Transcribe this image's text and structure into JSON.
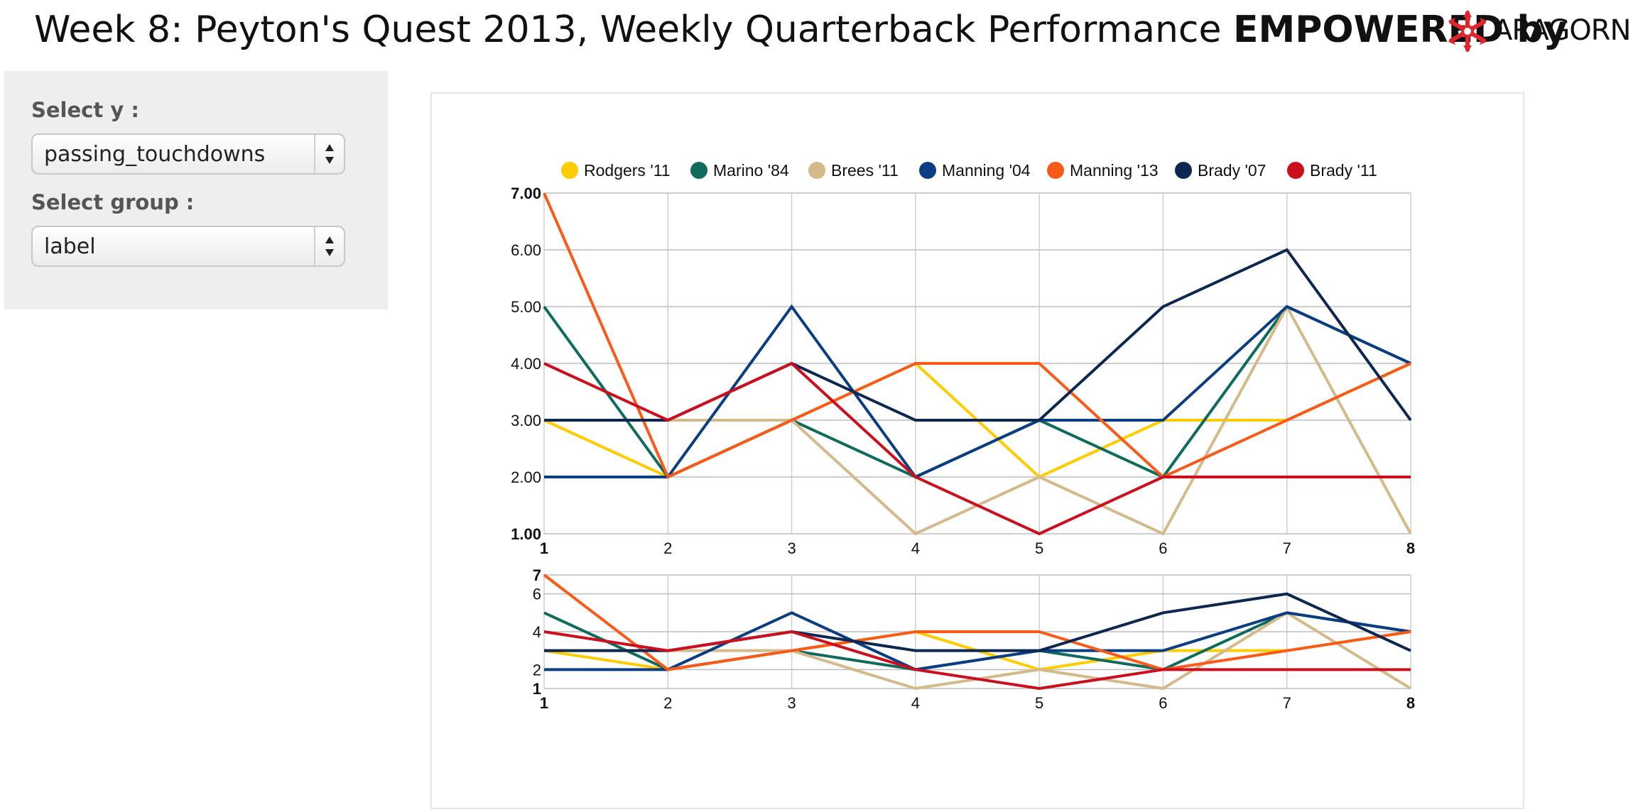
{
  "header": {
    "title_plain": "Week 8: Peyton's Quest 2013, Weekly Quarterback Performance ",
    "title_bold": "EMPOWERED by",
    "logo_text": "ARAGORN"
  },
  "controls": {
    "y_label": "Select y :",
    "y_value": "passing_touchdowns",
    "group_label": "Select group :",
    "group_value": "label"
  },
  "colors": {
    "sidebar_bg": "#eeeeee",
    "logo_red": "#e0262c"
  },
  "chart_data": {
    "type": "line",
    "title": "",
    "xlabel": "",
    "ylabel": "",
    "x": [
      1,
      2,
      3,
      4,
      5,
      6,
      7,
      8
    ],
    "ylim": [
      1,
      7
    ],
    "grid": true,
    "legend_position": "top",
    "main_y_ticks": [
      "1.00",
      "2.00",
      "3.00",
      "4.00",
      "5.00",
      "6.00",
      "7.00"
    ],
    "overview_y_ticks": [
      "1",
      "2",
      "4",
      "6",
      "7"
    ],
    "x_ticks": [
      "1",
      "2",
      "3",
      "4",
      "5",
      "6",
      "7",
      "8"
    ],
    "series": [
      {
        "name": "Rodgers '11",
        "color": "#ffcc00",
        "values": [
          3,
          2,
          3,
          4,
          2,
          3,
          3,
          4
        ]
      },
      {
        "name": "Marino '84",
        "color": "#0f6b5c",
        "values": [
          5,
          2,
          3,
          2,
          3,
          2,
          5,
          4
        ]
      },
      {
        "name": "Brees '11",
        "color": "#d4b98a",
        "values": [
          3,
          3,
          3,
          1,
          2,
          1,
          5,
          1
        ]
      },
      {
        "name": "Manning '04",
        "color": "#0a3d82",
        "values": [
          2,
          2,
          5,
          2,
          3,
          3,
          5,
          4
        ]
      },
      {
        "name": "Manning '13",
        "color": "#fa5a19",
        "values": [
          7,
          2,
          3,
          4,
          4,
          2,
          3,
          4
        ]
      },
      {
        "name": "Brady '07",
        "color": "#0e2750",
        "values": [
          3,
          3,
          4,
          3,
          3,
          5,
          6,
          3
        ]
      },
      {
        "name": "Brady '11",
        "color": "#cc0f1f",
        "values": [
          4,
          3,
          4,
          2,
          1,
          2,
          2,
          2
        ]
      }
    ]
  }
}
